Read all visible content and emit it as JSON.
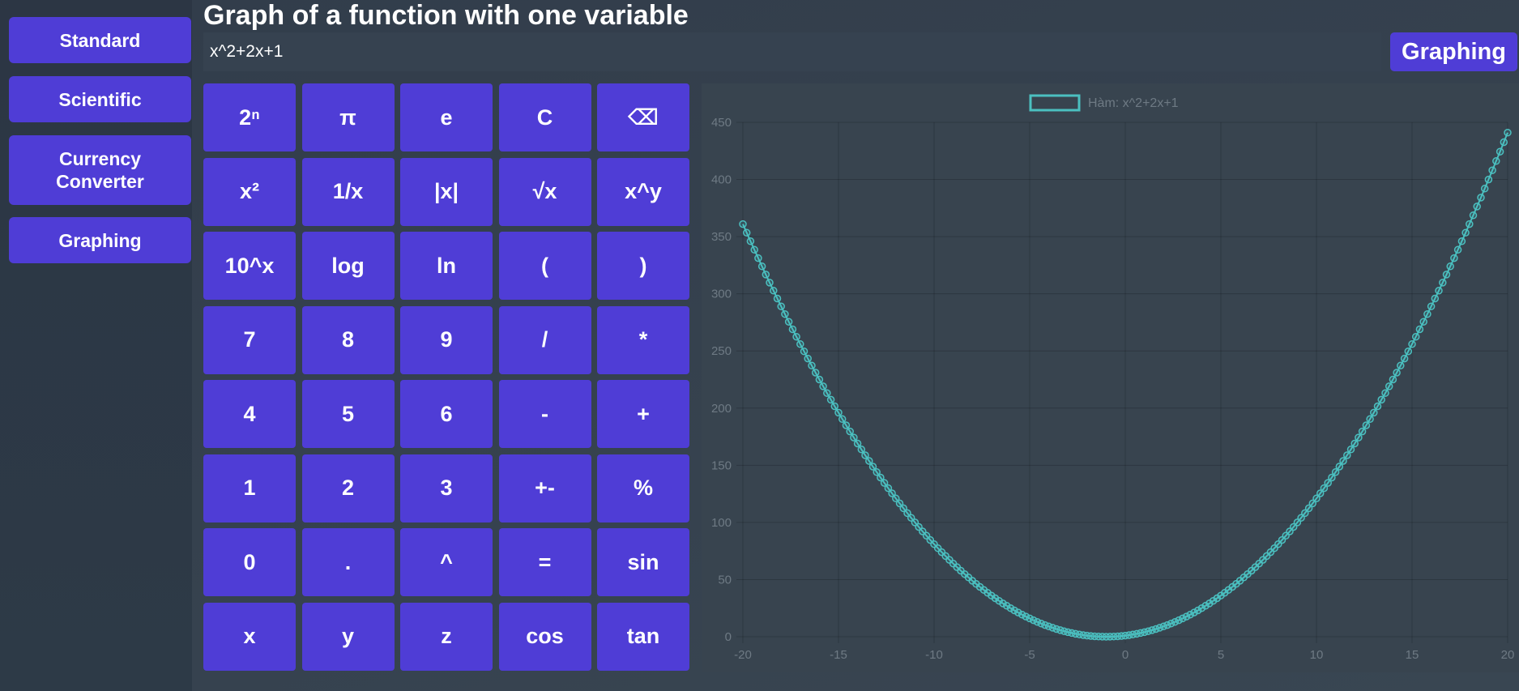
{
  "sidebar": {
    "items": [
      {
        "label": "Standard"
      },
      {
        "label": "Scientific"
      },
      {
        "label": "Currency\nConverter"
      },
      {
        "label": "Graphing"
      }
    ]
  },
  "header": {
    "title": "Graph of a function with one variable",
    "expression_value": "x^2+2x+1",
    "graph_button_label": "Graphing"
  },
  "keypad": {
    "keys": [
      "2ⁿ",
      "π",
      "e",
      "C",
      "⌫",
      "x²",
      "1/x",
      "|x|",
      "√x",
      "x^y",
      "10^x",
      "log",
      "ln",
      "(",
      ")",
      "7",
      "8",
      "9",
      "/",
      "*",
      "4",
      "5",
      "6",
      "-",
      "+",
      "1",
      "2",
      "3",
      "+-",
      "%",
      "0",
      ".",
      "^",
      "=",
      "sin",
      "x",
      "y",
      "z",
      "cos",
      "tan"
    ]
  },
  "colors": {
    "accent": "#4f3dd6",
    "series": "#4bc0c0"
  },
  "chart_data": {
    "type": "line",
    "title": "",
    "xlabel": "",
    "ylabel": "",
    "xlim": [
      -20,
      20
    ],
    "ylim": [
      0,
      450
    ],
    "x_ticks": [
      -20,
      -15,
      -10,
      -5,
      0,
      5,
      10,
      15,
      20
    ],
    "y_ticks": [
      0,
      50,
      100,
      150,
      200,
      250,
      300,
      350,
      400,
      450
    ],
    "grid": true,
    "legend_position": "top-center",
    "series": [
      {
        "name": "Hàm: x^2+2x+1",
        "function": "x^2+2x+1",
        "x_range": [
          -20,
          20
        ],
        "x_step": 0.2,
        "points_sample": [
          [
            -20,
            361
          ],
          [
            -15,
            196
          ],
          [
            -10,
            81
          ],
          [
            -5,
            16
          ],
          [
            -1,
            0
          ],
          [
            0,
            1
          ],
          [
            5,
            36
          ],
          [
            10,
            121
          ],
          [
            15,
            256
          ],
          [
            20,
            441
          ]
        ]
      }
    ]
  }
}
